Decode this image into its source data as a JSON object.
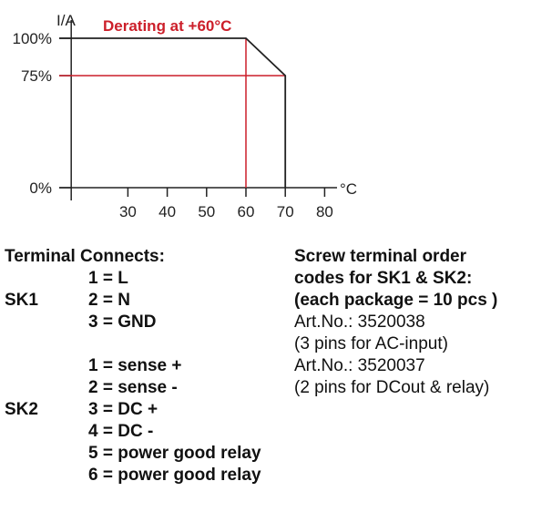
{
  "chart_data": {
    "type": "line",
    "title": "Derating at +60°C",
    "ylabel": "I/A",
    "xlabel": "°C",
    "x_ticks": [
      30,
      40,
      50,
      60,
      70,
      80
    ],
    "y_ticks": [
      {
        "value": 0,
        "label": "0%"
      },
      {
        "value": 75,
        "label": "75%"
      },
      {
        "value": 100,
        "label": "100%"
      }
    ],
    "xlim": [
      15.6,
      83
    ],
    "ylim": [
      0,
      100
    ],
    "series": [
      {
        "x": [
          60,
          70,
          70
        ],
        "y": [
          100,
          75,
          0
        ]
      }
    ],
    "reference_lines": [
      {
        "axis": "x",
        "value": 60
      },
      {
        "axis": "y",
        "value": 75
      }
    ],
    "colors": {
      "curve": "#222222",
      "reference": "#cc1f2a",
      "title": "#cc1f2a"
    }
  },
  "terminal": {
    "heading": "Terminal Connects:",
    "sk1_label": "SK1",
    "sk1_items": [
      "1 = L",
      "2 = N",
      "3 = GND"
    ],
    "sk2_label": "SK2",
    "sk2_items": [
      "1 = sense +",
      "2 = sense -",
      "3 = DC +",
      "4 = DC -",
      "5 = power good relay",
      "6 = power good relay"
    ]
  },
  "order": {
    "heading_lines": [
      "Screw terminal order",
      "codes for SK1 & SK2:",
      "(each package = 10 pcs )"
    ],
    "items": [
      "Art.No.: 3520038",
      "(3 pins for AC-input)",
      "Art.No.: 3520037",
      "(2 pins for DCout & relay)"
    ]
  }
}
